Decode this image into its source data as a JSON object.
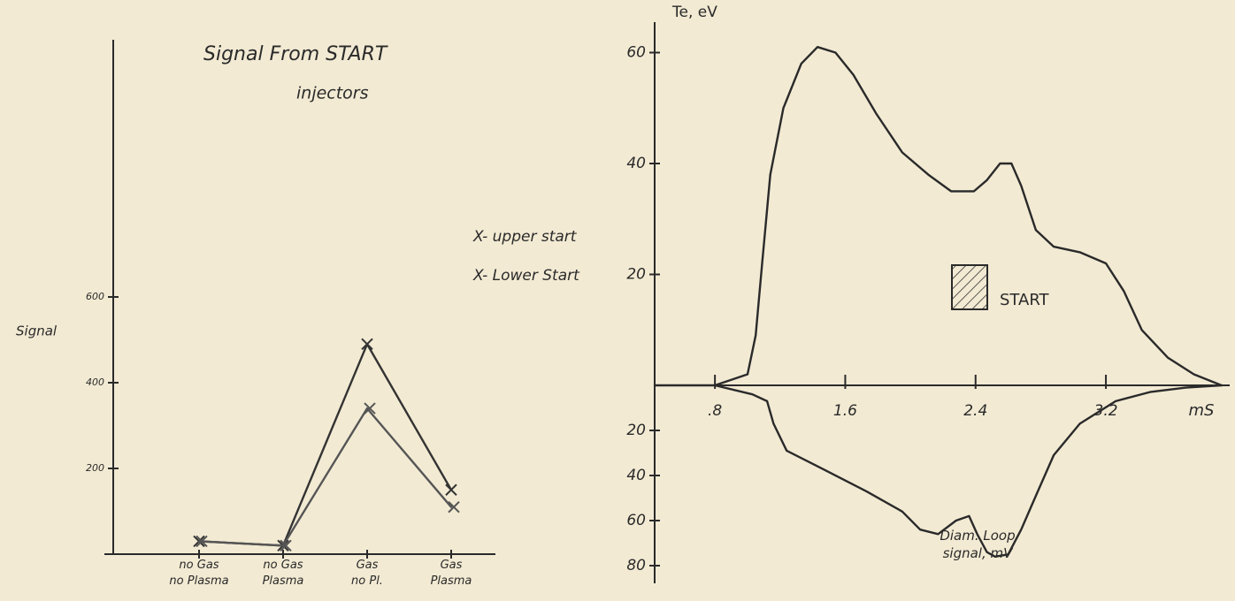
{
  "chart_data": [
    {
      "type": "line",
      "title": "Signal From START",
      "subtitle": "injectors",
      "ylabel": "Signal",
      "categories": [
        "no Gas\nno Plasma",
        "no Gas\nPlasma",
        "Gas\nno Pl.",
        "Gas\nPlasma"
      ],
      "series": [
        {
          "name": "X- upper start",
          "color": "#333333",
          "values": [
            30,
            20,
            490,
            150
          ]
        },
        {
          "name": "X- Lower Start",
          "color": "#555555",
          "values": [
            30,
            20,
            340,
            110
          ]
        }
      ],
      "ylim": [
        0,
        1200
      ],
      "yticks": [
        200,
        400,
        600
      ]
    },
    {
      "type": "line",
      "title": "Te, eV",
      "xlabel": "mS",
      "annotation": "START",
      "x": [
        0.43,
        0.8,
        1.0,
        1.05,
        1.09,
        1.14,
        1.22,
        1.33,
        1.43,
        1.54,
        1.65,
        1.79,
        1.95,
        2.11,
        2.25,
        2.39,
        2.47,
        2.55,
        2.62,
        2.68,
        2.77,
        2.88,
        3.04,
        3.2,
        3.31,
        3.42,
        3.58,
        3.74,
        3.91
      ],
      "values": [
        0,
        0,
        2,
        9,
        22,
        38,
        50,
        58,
        61,
        60,
        56,
        49,
        42,
        38,
        35,
        35,
        37,
        40,
        40,
        36,
        28,
        25,
        24,
        22,
        17,
        10,
        5,
        2,
        0
      ],
      "color": "#2a2a2a",
      "xlim": [
        0.43,
        3.96
      ],
      "xticks": [
        {
          "value": 0.8,
          "label": ".8"
        },
        1.6,
        2.4,
        3.2
      ],
      "ylim": [
        0,
        65.5
      ],
      "yticks": [
        20,
        40,
        60
      ]
    },
    {
      "type": "line",
      "ylabel": "Diam. Loop signal, mV",
      "x": [
        0.8,
        1.03,
        1.12,
        1.16,
        1.24,
        1.46,
        1.73,
        1.95,
        2.06,
        2.17,
        2.28,
        2.36,
        2.41,
        2.47,
        2.52,
        2.6,
        2.68,
        2.77,
        2.88,
        3.04,
        3.26,
        3.47,
        3.69,
        3.91
      ],
      "values": [
        0,
        4,
        7,
        17,
        29,
        37,
        47,
        56,
        64,
        66,
        60,
        58,
        66,
        74,
        76,
        75,
        64,
        49,
        31,
        17,
        7,
        3,
        1,
        0
      ],
      "color": "#2a2a2a",
      "inverted": true,
      "xlim": [
        0.43,
        3.96
      ],
      "ylim": [
        0,
        80
      ],
      "yticks": [
        20,
        40,
        60,
        80
      ]
    }
  ]
}
